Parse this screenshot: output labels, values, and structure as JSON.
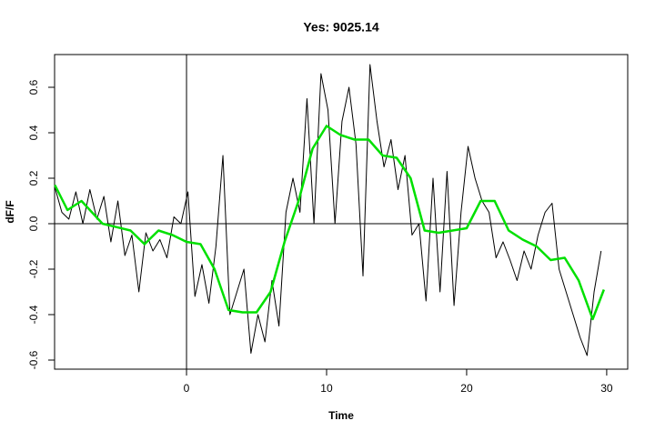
{
  "chart_data": {
    "type": "line",
    "title": "Yes: 9025.14",
    "x_label": "Time",
    "y_label": "dF/F",
    "xlim": [
      -9.42,
      31.5
    ],
    "ylim": [
      -0.64,
      0.744
    ],
    "xticks": [
      0,
      10,
      20,
      30
    ],
    "yticks": [
      -0.6,
      -0.4,
      -0.2,
      {
        "value": 0,
        "label": "0.0"
      },
      0.2,
      0.4,
      0.6
    ],
    "hline": 0,
    "vline": 0,
    "series": [
      {
        "color": "#000000",
        "width": 1,
        "x": [
          -9.4,
          -8.9,
          -8.4,
          -7.9,
          -7.4,
          -6.9,
          -6.4,
          -5.9,
          -5.4,
          -4.9,
          -4.4,
          -3.9,
          -3.4,
          -2.9,
          -2.4,
          -1.9,
          -1.4,
          -0.9,
          -0.4,
          0.1,
          0.6,
          1.1,
          1.6,
          2.1,
          2.6,
          3.1,
          3.6,
          4.1,
          4.6,
          5.1,
          5.6,
          6.1,
          6.6,
          7.1,
          7.6,
          8.1,
          8.6,
          9.1,
          9.6,
          10.1,
          10.6,
          11.1,
          11.6,
          12.1,
          12.6,
          13.1,
          13.6,
          14.1,
          14.6,
          15.1,
          15.6,
          16.1,
          16.6,
          17.1,
          17.6,
          18.1,
          18.6,
          19.1,
          19.6,
          20.1,
          20.6,
          21.1,
          21.6,
          22.1,
          22.6,
          23.1,
          23.6,
          24.1,
          24.6,
          25.1,
          25.6,
          26.1,
          26.6,
          27.1,
          27.6,
          28.1,
          28.6,
          29.1,
          29.6
        ],
        "values": [
          0.16,
          0.05,
          0.02,
          0.14,
          0.0,
          0.15,
          0.02,
          0.12,
          -0.08,
          0.1,
          -0.14,
          -0.05,
          -0.3,
          -0.04,
          -0.12,
          -0.07,
          -0.15,
          0.03,
          0.0,
          0.14,
          -0.32,
          -0.18,
          -0.35,
          -0.1,
          0.3,
          -0.4,
          -0.3,
          -0.2,
          -0.57,
          -0.4,
          -0.52,
          -0.25,
          -0.45,
          0.05,
          0.2,
          0.05,
          0.55,
          0.0,
          0.66,
          0.5,
          0.0,
          0.45,
          0.6,
          0.35,
          -0.23,
          0.7,
          0.45,
          0.25,
          0.37,
          0.15,
          0.3,
          -0.05,
          0.0,
          -0.34,
          0.2,
          -0.3,
          0.23,
          -0.36,
          0.05,
          0.34,
          0.2,
          0.1,
          0.05,
          -0.15,
          -0.08,
          -0.16,
          -0.25,
          -0.12,
          -0.2,
          -0.05,
          0.05,
          0.09,
          -0.2,
          -0.3,
          -0.4,
          -0.5,
          -0.58,
          -0.3,
          -0.12
        ]
      },
      {
        "color": "#00e000",
        "width": 2.5,
        "x": [
          -9.4,
          -8.5,
          -7.5,
          -6,
          -4,
          -3,
          -2,
          -1,
          0,
          1,
          2,
          3,
          4,
          5,
          6,
          7,
          8,
          9,
          10,
          11,
          12,
          13,
          14,
          15,
          16,
          17,
          18,
          19,
          20,
          21,
          22,
          23,
          24,
          25,
          26,
          27,
          28,
          29,
          29.8
        ],
        "values": [
          0.17,
          0.06,
          0.1,
          0.0,
          -0.03,
          -0.09,
          -0.03,
          -0.05,
          -0.08,
          -0.09,
          -0.2,
          -0.38,
          -0.39,
          -0.39,
          -0.3,
          -0.08,
          0.1,
          0.33,
          0.43,
          0.39,
          0.37,
          0.37,
          0.3,
          0.29,
          0.2,
          -0.03,
          -0.04,
          -0.03,
          -0.02,
          0.1,
          0.1,
          -0.03,
          -0.07,
          -0.1,
          -0.16,
          -0.15,
          -0.25,
          -0.42,
          -0.29
        ]
      }
    ]
  }
}
